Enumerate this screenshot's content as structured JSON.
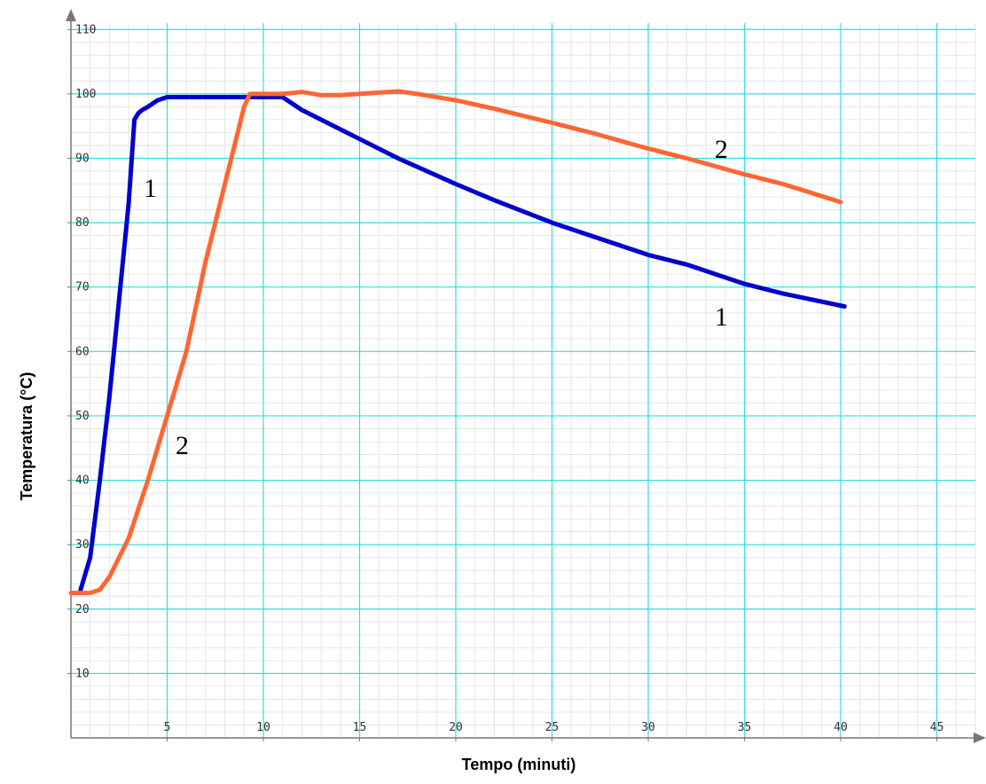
{
  "chart_data": {
    "type": "line",
    "title": "",
    "xlabel": "Tempo (minuti)",
    "ylabel": "Temperatura (°C)",
    "xlim": [
      0,
      47
    ],
    "ylim": [
      0,
      111
    ],
    "grid": true,
    "x_ticks": [
      "5",
      "10",
      "15",
      "20",
      "25",
      "30",
      "35",
      "40",
      "45"
    ],
    "y_ticks": [
      "10",
      "20",
      "30",
      "40",
      "50",
      "60",
      "70",
      "80",
      "90",
      "100",
      "110"
    ],
    "colors": {
      "series_1": "#0000cc",
      "series_2": "#ff6633",
      "major_grid": "#33dddd",
      "minor_grid": "#e6e6e6",
      "axis": "#777777"
    },
    "series": [
      {
        "name": "1",
        "x": [
          0.5,
          1.0,
          1.5,
          2.0,
          2.5,
          3.0,
          3.3,
          3.5,
          3.7,
          4.0,
          4.5,
          5.0,
          6.0,
          8.0,
          10.0,
          11.0,
          12.0,
          13.0,
          15.0,
          17.0,
          20.0,
          22.0,
          25.0,
          27.0,
          30.0,
          32.0,
          35.0,
          37.0,
          40.2
        ],
        "y": [
          23,
          28,
          40,
          53,
          68,
          83,
          96,
          97,
          97.5,
          98,
          99,
          99.5,
          99.5,
          99.5,
          99.5,
          99.5,
          97.5,
          96,
          93,
          90,
          86,
          83.5,
          80,
          78,
          75,
          73.5,
          70.5,
          69,
          67
        ]
      },
      {
        "name": "2",
        "x": [
          0,
          1.0,
          1.5,
          2.0,
          3.0,
          4.0,
          5.0,
          5.5,
          6.0,
          6.5,
          7.0,
          7.5,
          8.0,
          8.5,
          9.0,
          9.3,
          10.0,
          11.0,
          12.0,
          13.0,
          14.0,
          15.0,
          16.0,
          17.0,
          18.0,
          20.0,
          22.0,
          25.0,
          27.0,
          30.0,
          32.0,
          35.0,
          37.0,
          40.0
        ],
        "y": [
          22.5,
          22.5,
          23,
          25,
          31,
          40,
          50,
          55,
          60,
          67,
          74,
          80,
          86,
          92,
          98,
          100,
          100,
          100,
          100.3,
          99.8,
          99.8,
          100,
          100.2,
          100.4,
          100,
          99,
          97.7,
          95.5,
          94,
          91.5,
          90,
          87.5,
          86,
          83.2
        ]
      }
    ],
    "curve_labels": [
      "1",
      "2",
      "1",
      "2"
    ]
  }
}
